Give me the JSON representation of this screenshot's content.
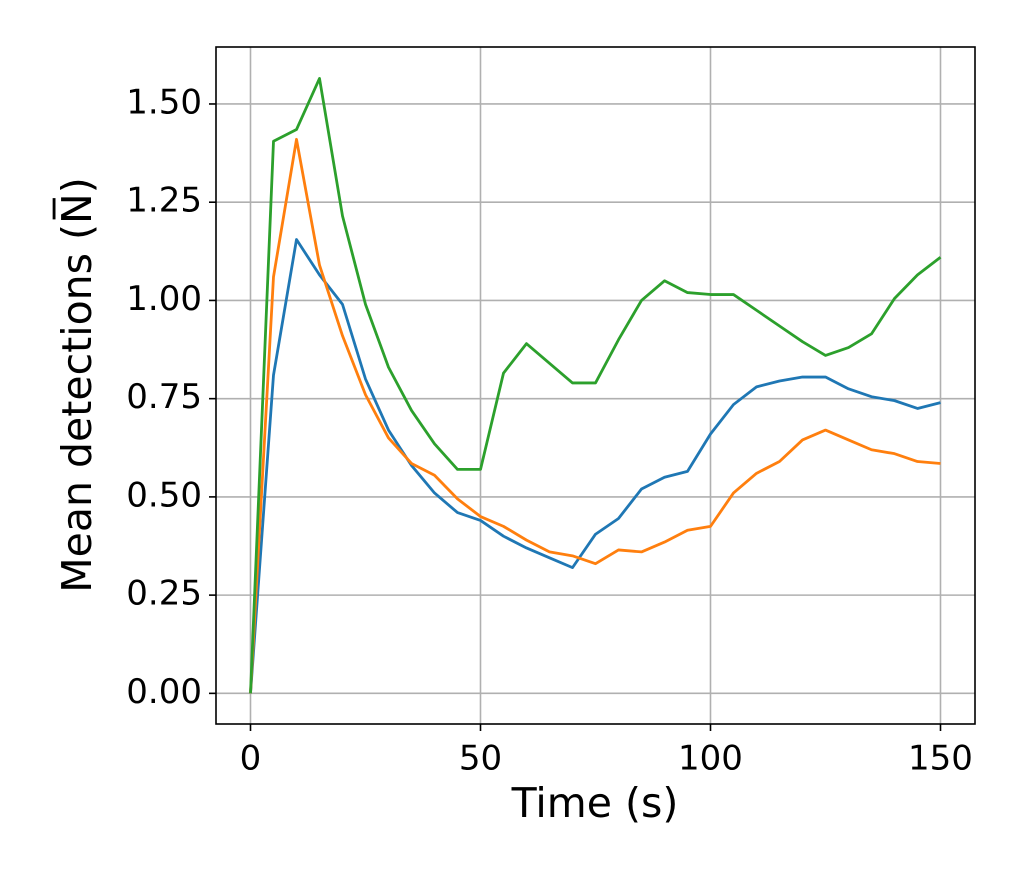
{
  "chart_data": {
    "type": "line",
    "xlabel": "Time (s)",
    "ylabel": "Mean detections (N̅)",
    "x": [
      0,
      5,
      10,
      15,
      20,
      25,
      30,
      35,
      40,
      45,
      50,
      55,
      60,
      65,
      70,
      75,
      80,
      85,
      90,
      95,
      100,
      105,
      110,
      115,
      120,
      125,
      130,
      135,
      140,
      145,
      150
    ],
    "series": [
      {
        "color": "#1f77b4",
        "values": [
          0,
          0.81,
          1.155,
          1.065,
          0.99,
          0.8,
          0.67,
          0.58,
          0.51,
          0.46,
          0.44,
          0.4,
          0.37,
          0.345,
          0.32,
          0.405,
          0.445,
          0.52,
          0.55,
          0.565,
          0.66,
          0.735,
          0.78,
          0.795,
          0.805,
          0.805,
          0.775,
          0.755,
          0.745,
          0.725,
          0.74
        ]
      },
      {
        "color": "#ff7f0e",
        "values": [
          0,
          1.06,
          1.41,
          1.09,
          0.91,
          0.76,
          0.65,
          0.585,
          0.555,
          0.495,
          0.45,
          0.425,
          0.39,
          0.36,
          0.35,
          0.33,
          0.365,
          0.36,
          0.385,
          0.415,
          0.425,
          0.51,
          0.56,
          0.59,
          0.645,
          0.67,
          0.645,
          0.62,
          0.61,
          0.59,
          0.585
        ]
      },
      {
        "color": "#2ca02c",
        "values": [
          0,
          1.405,
          1.435,
          1.565,
          1.215,
          0.99,
          0.83,
          0.72,
          0.635,
          0.57,
          0.57,
          0.815,
          0.89,
          0.84,
          0.79,
          0.79,
          0.9,
          1.0,
          1.05,
          1.02,
          1.015,
          1.015,
          0.975,
          0.935,
          0.895,
          0.86,
          0.88,
          0.915,
          1.005,
          1.065,
          1.11
        ]
      }
    ],
    "xlim": [
      -7.5,
      157.5
    ],
    "xticks": [
      0,
      50,
      100,
      150
    ],
    "ylim": [
      -0.078,
      1.645
    ],
    "yticks": [
      {
        "value": 0,
        "label": "0.00"
      },
      {
        "value": 0.25,
        "label": "0.25"
      },
      {
        "value": 0.5,
        "label": "0.50"
      },
      {
        "value": 0.75,
        "label": "0.75"
      },
      {
        "value": 1,
        "label": "1.00"
      },
      {
        "value": 1.25,
        "label": "1.25"
      },
      {
        "value": 1.5,
        "label": "1.50"
      }
    ],
    "grid": true
  }
}
